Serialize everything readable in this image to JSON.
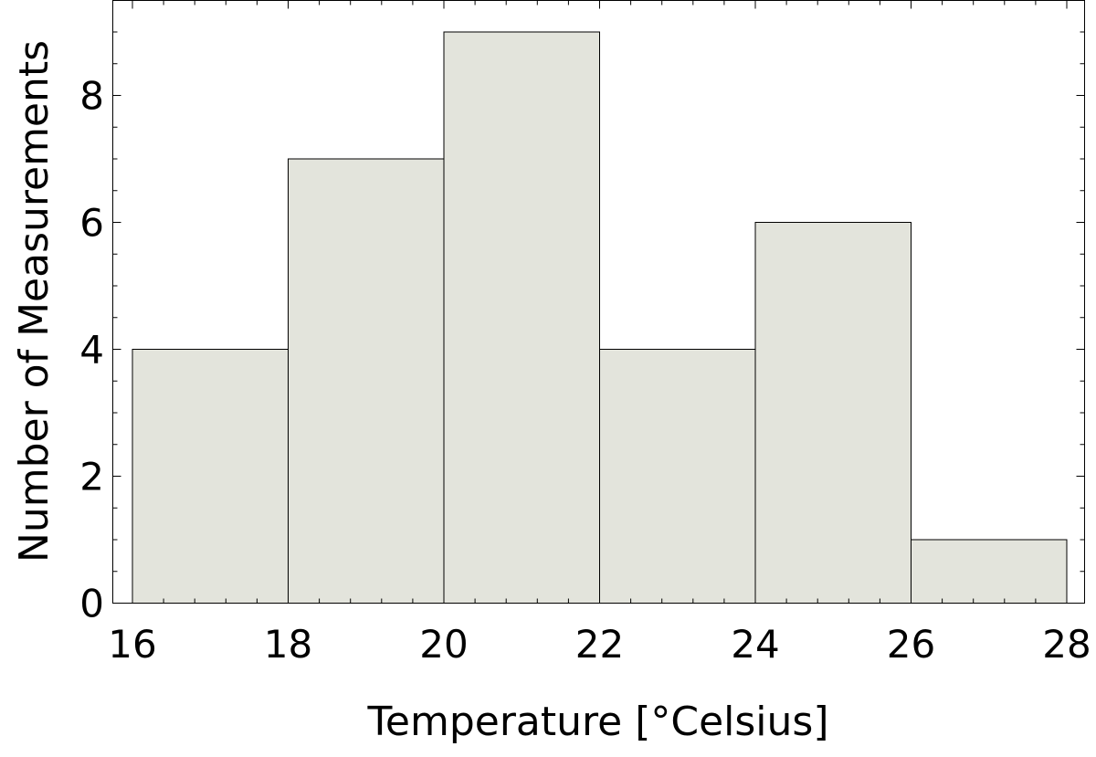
{
  "chart_data": {
    "type": "bar",
    "subtype": "histogram",
    "title": "",
    "xlabel": "Temperature [°Celsius]",
    "ylabel": "Number of Measurements",
    "bins": [
      {
        "x0": 16,
        "x1": 18,
        "count": 4
      },
      {
        "x0": 18,
        "x1": 20,
        "count": 7
      },
      {
        "x0": 20,
        "x1": 22,
        "count": 9
      },
      {
        "x0": 22,
        "x1": 24,
        "count": 4
      },
      {
        "x0": 24,
        "x1": 26,
        "count": 6
      },
      {
        "x0": 26,
        "x1": 28,
        "count": 1
      }
    ],
    "xlim": [
      15.85,
      28.25
    ],
    "ylim": [
      0,
      9.5
    ],
    "x_ticks": [
      16,
      18,
      20,
      22,
      24,
      26,
      28
    ],
    "y_ticks": [
      0,
      2,
      4,
      6,
      8
    ],
    "bar_color": "#e3e4dc",
    "grid": false,
    "legend": false
  }
}
